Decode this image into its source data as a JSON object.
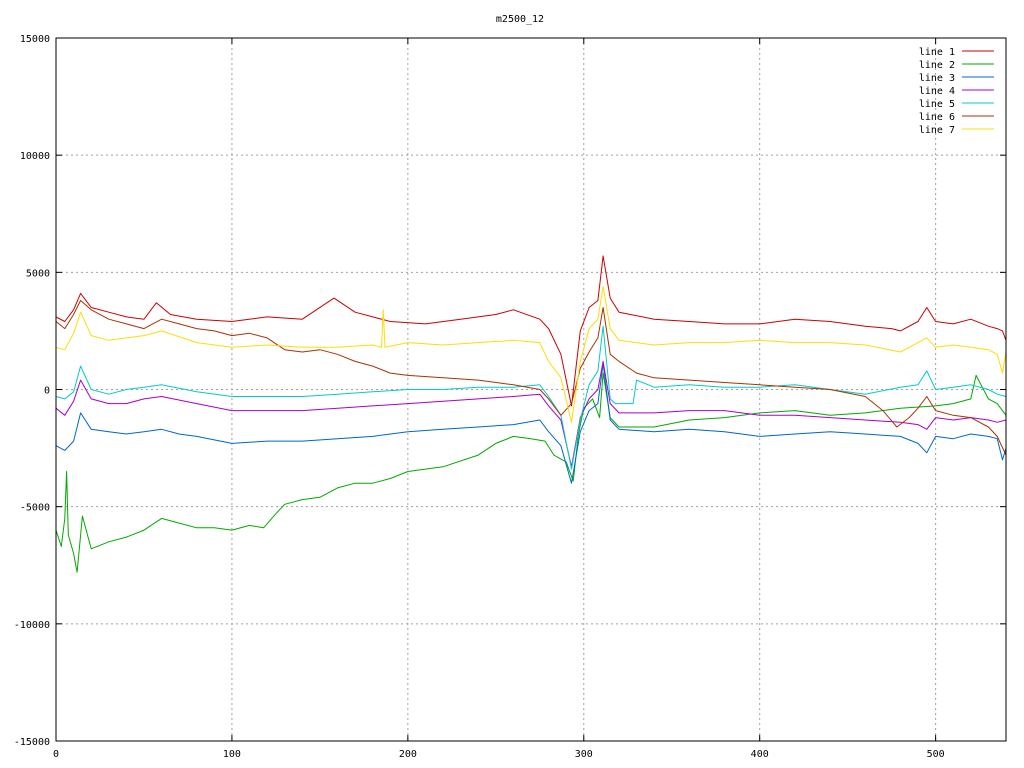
{
  "chart_data": {
    "type": "line",
    "title": "m2500_12",
    "xlabel": "",
    "ylabel": "",
    "xlim": [
      0,
      540
    ],
    "ylim": [
      -15000,
      15000
    ],
    "xticks": [
      0,
      100,
      200,
      300,
      400,
      500
    ],
    "yticks": [
      -15000,
      -10000,
      -5000,
      0,
      5000,
      10000,
      15000
    ],
    "grid": true,
    "legend_position": "top-right",
    "series": [
      {
        "name": "line 1",
        "color": "#cc0000",
        "x": [
          0,
          5,
          10,
          14,
          20,
          30,
          40,
          50,
          57,
          65,
          80,
          100,
          120,
          140,
          158,
          170,
          190,
          210,
          230,
          250,
          260,
          275,
          280,
          287,
          293,
          298,
          303,
          308,
          311,
          315,
          320,
          340,
          360,
          380,
          400,
          420,
          440,
          460,
          475,
          480,
          490,
          495,
          500,
          510,
          520,
          530,
          535,
          538,
          540
        ],
        "y": [
          3100,
          2900,
          3400,
          4100,
          3500,
          3300,
          3100,
          3000,
          3700,
          3200,
          3000,
          2900,
          3100,
          3000,
          3900,
          3300,
          2900,
          2800,
          3000,
          3200,
          3400,
          3000,
          2600,
          1500,
          -700,
          2500,
          3500,
          3800,
          5700,
          3900,
          3300,
          3000,
          2900,
          2800,
          2800,
          3000,
          2900,
          2700,
          2600,
          2500,
          2900,
          3500,
          2900,
          2800,
          3000,
          2700,
          2600,
          2500,
          2100
        ]
      },
      {
        "name": "line 2",
        "color": "#00aa00",
        "x": [
          0,
          3,
          5,
          6,
          7,
          10,
          12,
          15,
          20,
          30,
          40,
          50,
          60,
          70,
          80,
          90,
          100,
          110,
          118,
          125,
          130,
          140,
          150,
          160,
          170,
          180,
          190,
          200,
          220,
          240,
          250,
          260,
          270,
          278,
          283,
          290,
          294,
          297,
          300,
          305,
          309,
          311,
          315,
          320,
          340,
          360,
          380,
          400,
          420,
          440,
          460,
          480,
          500,
          510,
          520,
          523,
          530,
          535,
          540
        ],
        "y": [
          -6000,
          -6700,
          -5500,
          -3500,
          -6200,
          -7000,
          -7800,
          -5400,
          -6800,
          -6500,
          -6300,
          -6000,
          -5500,
          -5700,
          -5900,
          -5900,
          -6000,
          -5800,
          -5900,
          -5300,
          -4900,
          -4700,
          -4600,
          -4200,
          -4000,
          -4000,
          -3800,
          -3500,
          -3300,
          -2800,
          -2300,
          -2000,
          -2100,
          -2200,
          -2800,
          -3100,
          -3900,
          -1900,
          -800,
          -400,
          -1200,
          700,
          -1200,
          -1600,
          -1600,
          -1300,
          -1200,
          -1000,
          -900,
          -1100,
          -1000,
          -800,
          -700,
          -600,
          -400,
          600,
          -400,
          -600,
          -1100
        ]
      },
      {
        "name": "line 3",
        "color": "#0066cc",
        "x": [
          0,
          5,
          10,
          14,
          20,
          30,
          40,
          50,
          60,
          70,
          80,
          100,
          120,
          140,
          160,
          180,
          200,
          220,
          240,
          260,
          275,
          280,
          287,
          293,
          298,
          303,
          308,
          311,
          315,
          320,
          340,
          360,
          380,
          400,
          420,
          440,
          460,
          480,
          490,
          495,
          500,
          510,
          520,
          530,
          535,
          538,
          540
        ],
        "y": [
          -2400,
          -2600,
          -2200,
          -1000,
          -1700,
          -1800,
          -1900,
          -1800,
          -1700,
          -1900,
          -2000,
          -2300,
          -2200,
          -2200,
          -2100,
          -2000,
          -1800,
          -1700,
          -1600,
          -1500,
          -1300,
          -1800,
          -2400,
          -4000,
          -1800,
          -900,
          -600,
          1100,
          -1300,
          -1700,
          -1800,
          -1700,
          -1800,
          -2000,
          -1900,
          -1800,
          -1900,
          -2000,
          -2300,
          -2700,
          -2000,
          -2100,
          -1900,
          -2000,
          -2100,
          -3000,
          -2500
        ]
      },
      {
        "name": "line 4",
        "color": "#aa00cc",
        "x": [
          0,
          5,
          10,
          14,
          20,
          30,
          40,
          50,
          60,
          80,
          100,
          120,
          140,
          160,
          180,
          200,
          220,
          240,
          260,
          275,
          280,
          287,
          293,
          298,
          303,
          308,
          311,
          315,
          320,
          340,
          360,
          380,
          400,
          420,
          440,
          460,
          480,
          490,
          495,
          500,
          510,
          520,
          530,
          535,
          540
        ],
        "y": [
          -800,
          -1100,
          -500,
          400,
          -400,
          -600,
          -600,
          -400,
          -300,
          -600,
          -900,
          -900,
          -900,
          -800,
          -700,
          -600,
          -500,
          -400,
          -300,
          -200,
          -700,
          -1300,
          -3300,
          -1200,
          -400,
          0,
          1200,
          -600,
          -1000,
          -1000,
          -900,
          -900,
          -1100,
          -1100,
          -1200,
          -1300,
          -1400,
          -1500,
          -1700,
          -1200,
          -1300,
          -1200,
          -1300,
          -1400,
          -1300
        ]
      },
      {
        "name": "line 5",
        "color": "#00cccc",
        "x": [
          0,
          5,
          10,
          14,
          20,
          30,
          40,
          50,
          60,
          80,
          100,
          120,
          140,
          160,
          180,
          200,
          220,
          240,
          260,
          275,
          280,
          287,
          293,
          298,
          303,
          308,
          311,
          315,
          318,
          322,
          326,
          328,
          330,
          340,
          360,
          380,
          400,
          420,
          440,
          460,
          480,
          490,
          495,
          500,
          510,
          520,
          530,
          535,
          540
        ],
        "y": [
          -300,
          -400,
          -100,
          1000,
          0,
          -200,
          0,
          100,
          200,
          -100,
          -300,
          -300,
          -300,
          -200,
          -100,
          0,
          0,
          100,
          100,
          200,
          -300,
          -1100,
          -3400,
          -1300,
          200,
          800,
          2700,
          -400,
          -600,
          -600,
          -600,
          -600,
          400,
          100,
          200,
          100,
          100,
          200,
          0,
          -200,
          100,
          200,
          800,
          0,
          100,
          200,
          0,
          -200,
          -300
        ]
      },
      {
        "name": "line 6",
        "color": "#aa3300",
        "x": [
          0,
          5,
          10,
          14,
          20,
          30,
          40,
          50,
          60,
          70,
          80,
          90,
          100,
          110,
          120,
          130,
          140,
          150,
          160,
          170,
          180,
          190,
          200,
          220,
          240,
          260,
          275,
          280,
          287,
          293,
          298,
          303,
          308,
          311,
          315,
          320,
          330,
          340,
          360,
          380,
          400,
          420,
          440,
          460,
          470,
          478,
          485,
          490,
          495,
          500,
          510,
          520,
          530,
          535,
          540
        ],
        "y": [
          2900,
          2600,
          3200,
          3800,
          3400,
          3000,
          2800,
          2600,
          3000,
          2800,
          2600,
          2500,
          2300,
          2400,
          2200,
          1700,
          1600,
          1700,
          1500,
          1200,
          1000,
          700,
          600,
          500,
          400,
          200,
          0,
          -400,
          -1100,
          -600,
          900,
          1600,
          2200,
          3500,
          1500,
          1200,
          700,
          500,
          400,
          300,
          200,
          100,
          0,
          -300,
          -900,
          -1600,
          -1200,
          -800,
          -300,
          -900,
          -1100,
          -1200,
          -1600,
          -2000,
          -2800
        ]
      },
      {
        "name": "line 7",
        "color": "#ffdd00",
        "x": [
          0,
          5,
          10,
          14,
          20,
          30,
          40,
          50,
          60,
          80,
          100,
          120,
          140,
          160,
          180,
          185,
          186,
          187,
          200,
          220,
          240,
          260,
          275,
          280,
          287,
          293,
          298,
          303,
          308,
          311,
          315,
          320,
          340,
          360,
          380,
          400,
          420,
          440,
          460,
          480,
          490,
          495,
          500,
          510,
          520,
          530,
          535,
          538,
          540
        ],
        "y": [
          1800,
          1700,
          2400,
          3300,
          2300,
          2100,
          2200,
          2300,
          2500,
          2000,
          1800,
          1900,
          1800,
          1800,
          1900,
          1800,
          3400,
          1800,
          2000,
          1900,
          2000,
          2100,
          2000,
          1200,
          500,
          -1400,
          1200,
          2600,
          3000,
          4400,
          2600,
          2100,
          1900,
          2000,
          2000,
          2100,
          2000,
          2000,
          1900,
          1600,
          2000,
          2200,
          1800,
          1900,
          1800,
          1700,
          1500,
          700,
          1600
        ]
      }
    ]
  }
}
